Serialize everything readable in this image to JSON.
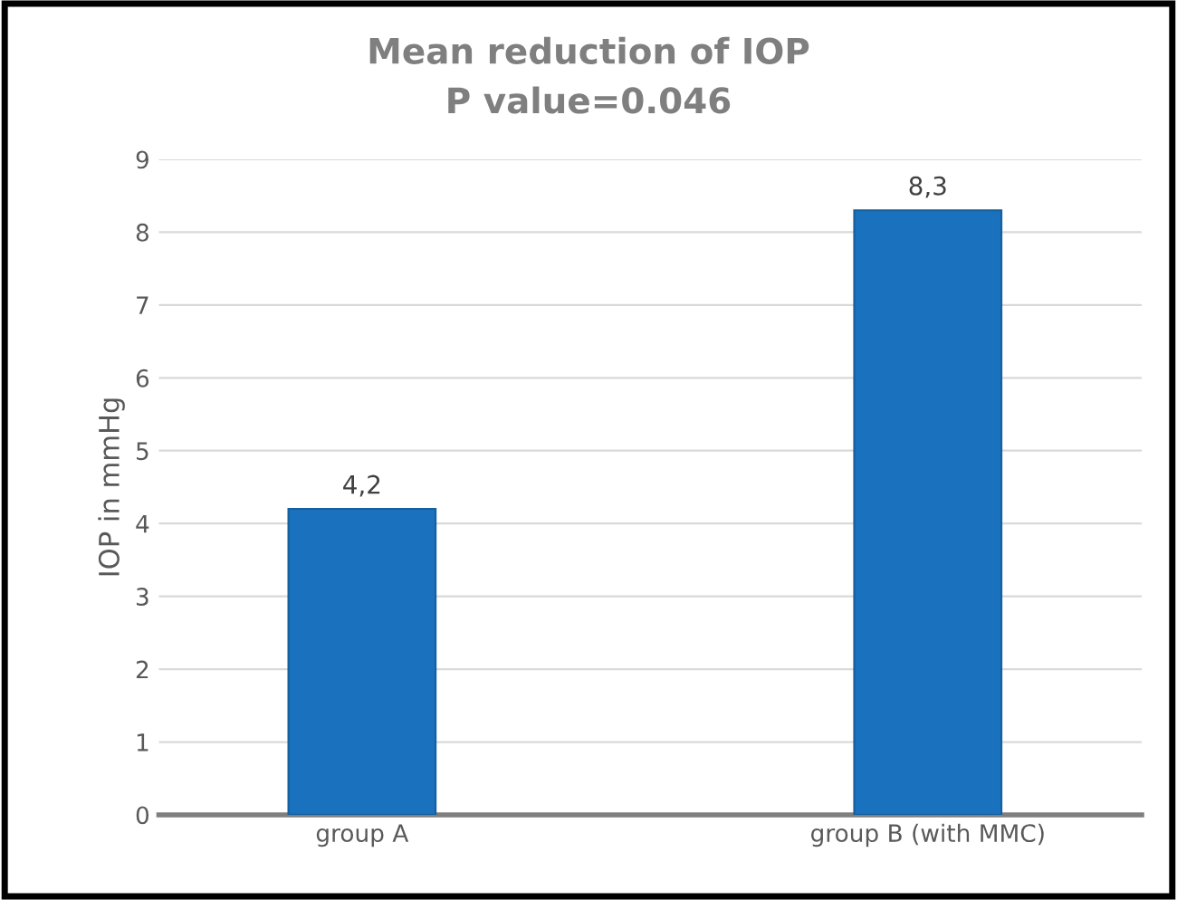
{
  "chart_data": {
    "type": "bar",
    "title": "Mean reduction of IOP",
    "subtitle": "P value=0.046",
    "ylabel": "IOP in mmHg",
    "categories": [
      "group A",
      "group B (with MMC)"
    ],
    "values": [
      4.2,
      8.3
    ],
    "value_labels": [
      "4,2",
      "8,3"
    ],
    "color": "#1a72bf",
    "ylim": [
      0,
      9
    ],
    "yticks": [
      0,
      1,
      2,
      3,
      4,
      5,
      6,
      7,
      8,
      9
    ],
    "grid": "y",
    "legend": false
  }
}
